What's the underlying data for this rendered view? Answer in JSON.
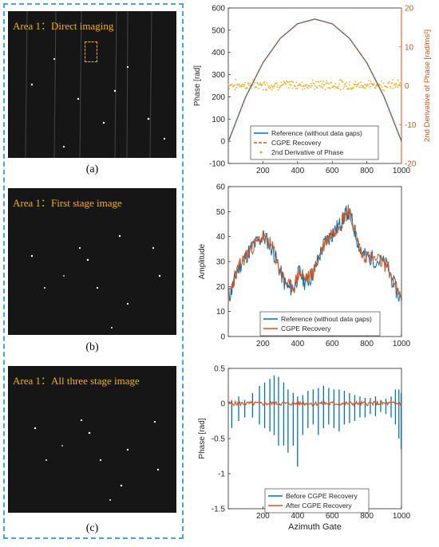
{
  "images": [
    {
      "label": "Area 1：Direct imaging",
      "caption": "(a)"
    },
    {
      "label": "Area 1：First stage image",
      "caption": "(b)"
    },
    {
      "label": "Area 1：All three stage image",
      "caption": "(c)"
    }
  ],
  "colors": {
    "blue": "#0072BD",
    "orange": "#D95319",
    "yellow": "#EDB120",
    "frame": "#4aa3d8",
    "label": "#f0b400"
  },
  "chart_data": [
    {
      "type": "line",
      "x": [
        1,
        100,
        200,
        300,
        400,
        500,
        600,
        700,
        800,
        900,
        1000
      ],
      "xlim": [
        0,
        1000
      ],
      "xticks": [
        "200",
        "400",
        "600",
        "800",
        "1000"
      ],
      "ylim": [
        -100,
        600
      ],
      "yticks": [
        "-100",
        "0",
        "100",
        "200",
        "300",
        "400",
        "500",
        "600"
      ],
      "ylabel": "Phase [rad]",
      "y2lim": [
        -20,
        20
      ],
      "y2ticks": [
        "-20",
        "-10",
        "0",
        "10",
        "20"
      ],
      "y2label": "2nd Derivative of Phase [rad/ms²]",
      "series": [
        {
          "name": "Reference (without data gaps)",
          "values": [
            0,
            199,
            353,
            463,
            529,
            550,
            529,
            463,
            353,
            199,
            0
          ]
        },
        {
          "name": "CGPE Recovery",
          "values": [
            0,
            199,
            353,
            463,
            529,
            550,
            529,
            463,
            353,
            199,
            0
          ]
        },
        {
          "name": "2nd Derivative of Phase",
          "axis": "right",
          "mean": 0.2,
          "spread": 1.5
        }
      ],
      "legend": "bottom-center"
    },
    {
      "type": "line",
      "x": [
        1,
        25,
        50,
        80,
        110,
        140,
        170,
        200,
        230,
        260,
        290,
        320,
        350,
        380,
        410,
        440,
        470,
        500,
        530,
        560,
        590,
        620,
        650,
        670,
        690,
        710,
        740,
        770,
        800,
        840,
        880,
        920,
        960,
        1000
      ],
      "xlim": [
        0,
        1000
      ],
      "xticks": [
        "200",
        "400",
        "600",
        "800",
        "1000"
      ],
      "ylim": [
        0,
        60
      ],
      "yticks": [
        "0",
        "10",
        "20",
        "30",
        "40",
        "50",
        "60"
      ],
      "ylabel": "Amplitude",
      "series": [
        {
          "name": "Reference (without data gaps)",
          "values": [
            15,
            20,
            26,
            30,
            33,
            36,
            38,
            40,
            38,
            34,
            28,
            22,
            19,
            20,
            26,
            22,
            23,
            27,
            33,
            38,
            40,
            43,
            45,
            48,
            50,
            47,
            40,
            33,
            32,
            31,
            30,
            28,
            20,
            14
          ]
        },
        {
          "name": "CGPE Recovery",
          "values": [
            16,
            21,
            26,
            30,
            33,
            36,
            38,
            40,
            38,
            35,
            28,
            23,
            20,
            20,
            26,
            23,
            24,
            27,
            33,
            38,
            41,
            43,
            46,
            48,
            51,
            47,
            40,
            33,
            32,
            31,
            30,
            28,
            21,
            14
          ]
        }
      ],
      "legend": "bottom-right"
    },
    {
      "type": "line",
      "xlim": [
        0,
        1000
      ],
      "xticks": [
        "200",
        "400",
        "600",
        "800",
        "1000"
      ],
      "xlabel": "Azimuth Gate",
      "ylim": [
        -1.5,
        0.5
      ],
      "yticks": [
        "-1.5",
        "-1",
        "-0.5",
        "0",
        "0.5"
      ],
      "ylabel": "Phase [rad]",
      "series": [
        {
          "name": "Before CGPE Recovery",
          "spikes": [
            [
              20,
              0.05,
              -0.35
            ],
            [
              60,
              0.1,
              -0.25
            ],
            [
              95,
              0.05,
              -0.2
            ],
            [
              140,
              0.15,
              -0.2
            ],
            [
              180,
              0.25,
              -0.3
            ],
            [
              210,
              0.3,
              -0.35
            ],
            [
              240,
              0.35,
              -0.4
            ],
            [
              265,
              0.4,
              -0.45
            ],
            [
              290,
              0.38,
              -0.6
            ],
            [
              320,
              0.3,
              -0.6
            ],
            [
              345,
              0.2,
              -0.7
            ],
            [
              375,
              0.15,
              -0.6
            ],
            [
              400,
              0.1,
              -0.9
            ],
            [
              430,
              0.12,
              -0.45
            ],
            [
              460,
              0.18,
              -0.35
            ],
            [
              490,
              0.2,
              -0.3
            ],
            [
              520,
              0.22,
              -0.45
            ],
            [
              550,
              0.25,
              -0.35
            ],
            [
              580,
              0.22,
              -0.3
            ],
            [
              610,
              0.2,
              -0.35
            ],
            [
              640,
              0.2,
              -0.4
            ],
            [
              670,
              0.18,
              -0.3
            ],
            [
              700,
              0.15,
              -0.28
            ],
            [
              730,
              0.12,
              -0.25
            ],
            [
              760,
              0.1,
              -0.2
            ],
            [
              790,
              0.08,
              -0.2
            ],
            [
              820,
              0.08,
              -0.15
            ],
            [
              850,
              0.1,
              -0.18
            ],
            [
              880,
              0.05,
              -0.12
            ],
            [
              910,
              0.07,
              -0.15
            ],
            [
              940,
              0.1,
              -0.2
            ],
            [
              965,
              0.2,
              -0.3
            ],
            [
              985,
              0.2,
              -0.5
            ],
            [
              998,
              0.15,
              -0.65
            ]
          ]
        },
        {
          "name": "After CGPE Recovery",
          "level": 0
        }
      ],
      "legend": "bottom-center"
    }
  ]
}
